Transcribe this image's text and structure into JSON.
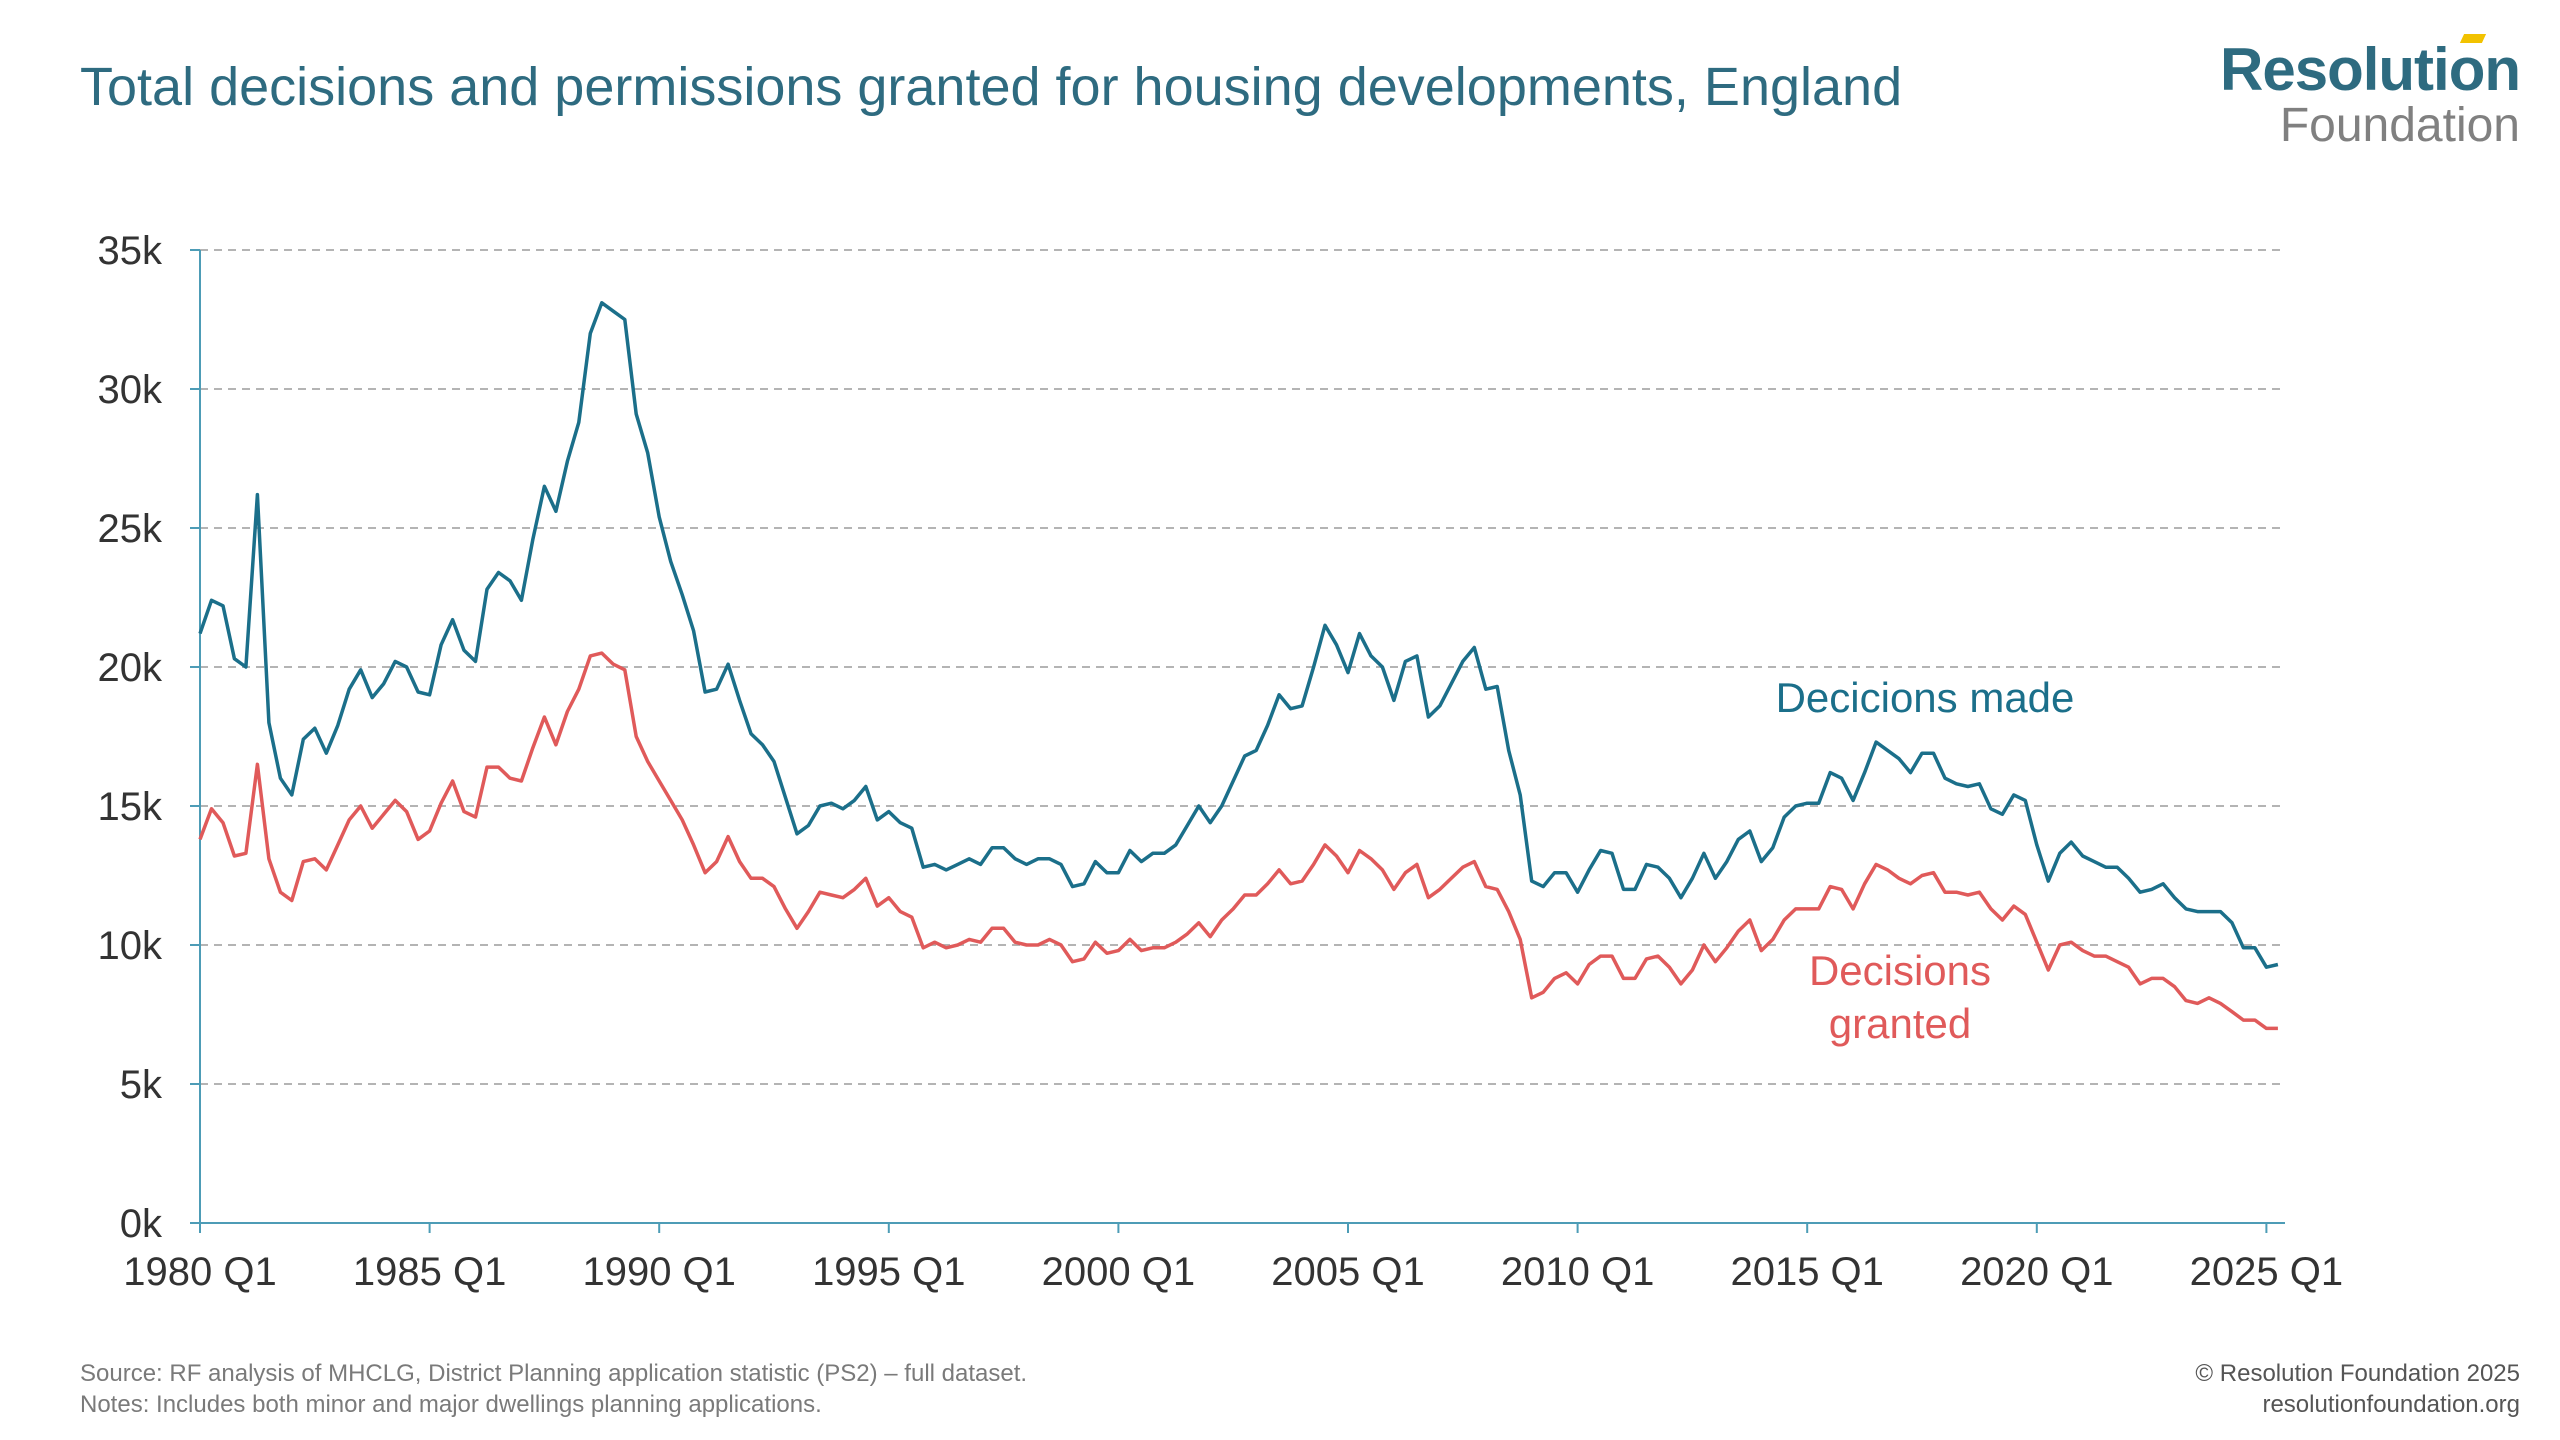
{
  "title": "Total decisions and permissions granted for housing developments, England",
  "logo": {
    "line1": "Resolution",
    "line2": "Foundation"
  },
  "footer": {
    "source": "Source: RF analysis of MHCLG, District Planning application statistic (PS2) – full dataset.",
    "notes": "Notes: Includes both minor and major dwellings planning applications.",
    "copyright": "© Resolution Foundation 2025",
    "url": "resolutionfoundation.org"
  },
  "colors": {
    "decisions_made": "#1b6f8a",
    "decisions_granted": "#e05a5a",
    "title": "#2e6b80",
    "grid": "#b4b4b4",
    "axis": "#4d9cb6"
  },
  "chart_data": {
    "type": "line",
    "frequency": "quarterly",
    "x_start": "1980 Q1",
    "x_ticks": [
      "1980 Q1",
      "1985 Q1",
      "1990 Q1",
      "1995 Q1",
      "2000 Q1",
      "2005 Q1",
      "2010 Q1",
      "2015 Q1",
      "2020 Q1",
      "2025 Q1"
    ],
    "y_ticks": [
      "0k",
      "5k",
      "10k",
      "15k",
      "20k",
      "25k",
      "30k",
      "35k"
    ],
    "ylim": [
      0,
      35000
    ],
    "grid": true,
    "series": [
      {
        "name": "Decicions made",
        "label_lines": [
          "Decicions made"
        ],
        "values": [
          21200,
          22400,
          22200,
          20300,
          20000,
          26200,
          18000,
          16000,
          15400,
          17400,
          17800,
          16900,
          17900,
          19200,
          19900,
          18900,
          19400,
          20200,
          20000,
          19100,
          19000,
          20800,
          21700,
          20600,
          20200,
          22800,
          23400,
          23100,
          22400,
          24600,
          26500,
          25600,
          27400,
          28800,
          32000,
          33100,
          32800,
          32500,
          29100,
          27700,
          25400,
          23800,
          22600,
          21300,
          19100,
          19200,
          20100,
          18800,
          17600,
          17200,
          16600,
          15300,
          14000,
          14300,
          15000,
          15100,
          14900,
          15200,
          15700,
          14500,
          14800,
          14400,
          14200,
          12800,
          12900,
          12700,
          12900,
          13100,
          12900,
          13500,
          13500,
          13100,
          12900,
          13100,
          13100,
          12900,
          12100,
          12200,
          13000,
          12600,
          12600,
          13400,
          13000,
          13300,
          13300,
          13600,
          14300,
          15000,
          14400,
          15000,
          15900,
          16800,
          17000,
          17900,
          19000,
          18500,
          18600,
          20000,
          21500,
          20800,
          19800,
          21200,
          20400,
          20000,
          18800,
          20200,
          20400,
          18200,
          18600,
          19400,
          20200,
          20700,
          19200,
          19300,
          17000,
          15400,
          12300,
          12100,
          12600,
          12600,
          11900,
          12700,
          13400,
          13300,
          12000,
          12000,
          12900,
          12800,
          12400,
          11700,
          12400,
          13300,
          12400,
          13000,
          13800,
          14100,
          13000,
          13500,
          14600,
          15000,
          15100,
          15100,
          16200,
          16000,
          15200,
          16200,
          17300,
          17000,
          16700,
          16200,
          16900,
          16900,
          16000,
          15800,
          15700,
          15800,
          14900,
          14700,
          15400,
          15200,
          13600,
          12300,
          13300,
          13700,
          13200,
          13000,
          12800,
          12800,
          12400,
          11900,
          12000,
          12200,
          11700,
          11300,
          11200,
          11200,
          11200,
          10800,
          9900,
          9900,
          9200,
          9300
        ]
      },
      {
        "name": "Decisions granted",
        "label_lines": [
          "Decisions",
          "granted"
        ],
        "values": [
          13800,
          14900,
          14400,
          13200,
          13300,
          16500,
          13100,
          11900,
          11600,
          13000,
          13100,
          12700,
          13600,
          14500,
          15000,
          14200,
          14700,
          15200,
          14800,
          13800,
          14100,
          15100,
          15900,
          14800,
          14600,
          16400,
          16400,
          16000,
          15900,
          17100,
          18200,
          17200,
          18400,
          19200,
          20400,
          20500,
          20100,
          19900,
          17500,
          16600,
          15900,
          15200,
          14500,
          13600,
          12600,
          13000,
          13900,
          13000,
          12400,
          12400,
          12100,
          11300,
          10600,
          11200,
          11900,
          11800,
          11700,
          12000,
          12400,
          11400,
          11700,
          11200,
          11000,
          9900,
          10100,
          9900,
          10000,
          10200,
          10100,
          10600,
          10600,
          10100,
          10000,
          10000,
          10200,
          10000,
          9400,
          9500,
          10100,
          9700,
          9800,
          10200,
          9800,
          9900,
          9900,
          10100,
          10400,
          10800,
          10300,
          10900,
          11300,
          11800,
          11800,
          12200,
          12700,
          12200,
          12300,
          12900,
          13600,
          13200,
          12600,
          13400,
          13100,
          12700,
          12000,
          12600,
          12900,
          11700,
          12000,
          12400,
          12800,
          13000,
          12100,
          12000,
          11200,
          10200,
          8100,
          8300,
          8800,
          9000,
          8600,
          9300,
          9600,
          9600,
          8800,
          8800,
          9500,
          9600,
          9200,
          8600,
          9100,
          10000,
          9400,
          9900,
          10500,
          10900,
          9800,
          10200,
          10900,
          11300,
          11300,
          11300,
          12100,
          12000,
          11300,
          12200,
          12900,
          12700,
          12400,
          12200,
          12500,
          12600,
          11900,
          11900,
          11800,
          11900,
          11300,
          10900,
          11400,
          11100,
          10100,
          9100,
          10000,
          10100,
          9800,
          9600,
          9600,
          9400,
          9200,
          8600,
          8800,
          8800,
          8500,
          8000,
          7900,
          8100,
          7900,
          7600,
          7300,
          7300,
          7000,
          7000
        ]
      }
    ]
  }
}
